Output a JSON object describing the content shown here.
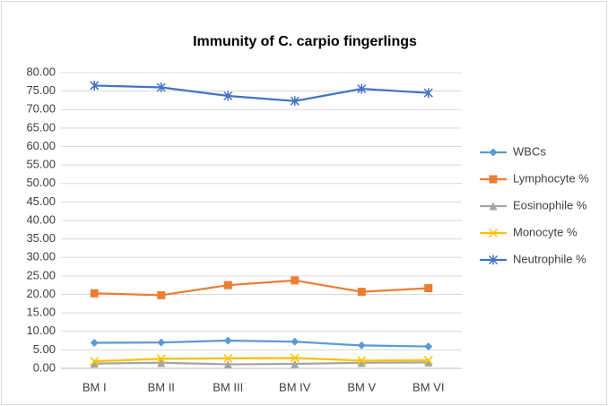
{
  "chart_data": {
    "type": "line",
    "title": "Immunity of C. carpio fingerlings",
    "categories": [
      "BM I",
      "BM II",
      "BM III",
      "BM IV",
      "BM V",
      "BM VI"
    ],
    "series": [
      {
        "name": "WBCs",
        "color": "#5b9bd5",
        "marker": "diamond",
        "values": [
          6.9,
          7.0,
          7.5,
          7.2,
          6.2,
          5.9
        ]
      },
      {
        "name": "Lymphocyte %",
        "color": "#ed7d31",
        "marker": "square",
        "values": [
          20.3,
          19.8,
          22.5,
          23.8,
          20.7,
          21.7
        ]
      },
      {
        "name": "Eosinophile %",
        "color": "#a5a5a5",
        "marker": "triangle",
        "values": [
          1.3,
          1.5,
          1.1,
          1.2,
          1.5,
          1.6
        ]
      },
      {
        "name": "Monocyte %",
        "color": "#ffc000",
        "marker": "x",
        "values": [
          1.9,
          2.6,
          2.7,
          2.8,
          2.1,
          2.2
        ]
      },
      {
        "name": "Neutrophile %",
        "color": "#4472c4",
        "marker": "star",
        "values": [
          76.5,
          76.0,
          73.7,
          72.3,
          75.6,
          74.5
        ]
      }
    ],
    "ylim": [
      0,
      80
    ],
    "yticks": [
      {
        "value": 0,
        "label": "0.00"
      },
      {
        "value": 5,
        "label": "5.00"
      },
      {
        "value": 10,
        "label": "10.00"
      },
      {
        "value": 15,
        "label": "15.00"
      },
      {
        "value": 20,
        "label": "20.00"
      },
      {
        "value": 25,
        "label": "25.00"
      },
      {
        "value": 30,
        "label": "30.00"
      },
      {
        "value": 35,
        "label": "35.00"
      },
      {
        "value": 40,
        "label": "40.00"
      },
      {
        "value": 45,
        "label": "45.00"
      },
      {
        "value": 50,
        "label": "50.00"
      },
      {
        "value": 55,
        "label": "55.00"
      },
      {
        "value": 60,
        "label": "60.00"
      },
      {
        "value": 65,
        "label": "65.00"
      },
      {
        "value": 70,
        "label": "70.00"
      },
      {
        "value": 75,
        "label": "75.00"
      },
      {
        "value": 80,
        "label": "80.00"
      }
    ],
    "grid": true,
    "legend": "right"
  }
}
